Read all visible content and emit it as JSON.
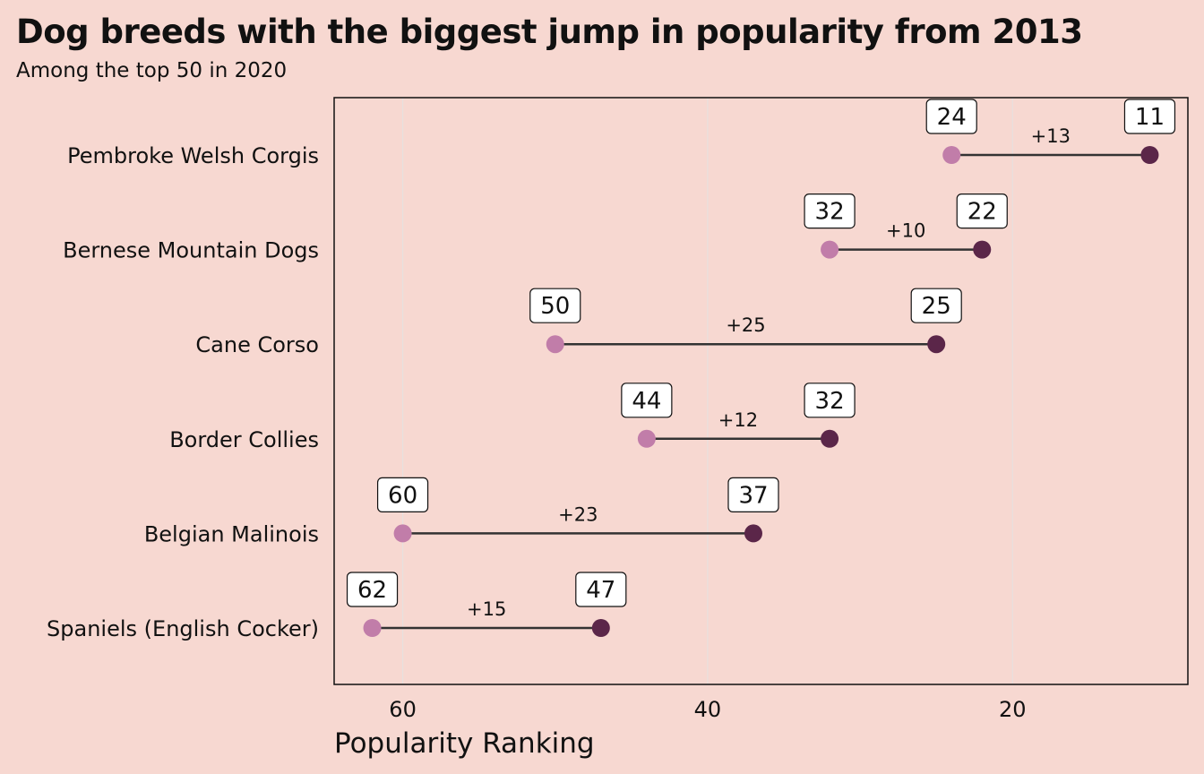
{
  "chart_data": {
    "type": "dumbbell",
    "title": "Dog breeds with the biggest jump in popularity from 2013",
    "subtitle": "Among the top 50 in 2020",
    "xlabel": "Popularity Ranking",
    "ylabel": "",
    "x_reversed": true,
    "xlim": [
      64.5,
      8.5
    ],
    "xticks": [
      60,
      40,
      20
    ],
    "grid": "vertical",
    "legend": "none",
    "colors": {
      "start": "#c17da9",
      "end": "#5b2649",
      "segment": "#333333"
    },
    "categories": [
      "Pembroke Welsh Corgis",
      "Bernese Mountain Dogs",
      "Cane Corso",
      "Border Collies",
      "Belgian Malinois",
      "Spaniels (English Cocker)"
    ],
    "series": [
      {
        "values": [
          24,
          32,
          50,
          44,
          60,
          62
        ]
      },
      {
        "values": [
          11,
          22,
          25,
          32,
          37,
          47
        ]
      }
    ],
    "change_labels": [
      "+13",
      "+10",
      "+25",
      "+12",
      "+23",
      "+15"
    ]
  }
}
